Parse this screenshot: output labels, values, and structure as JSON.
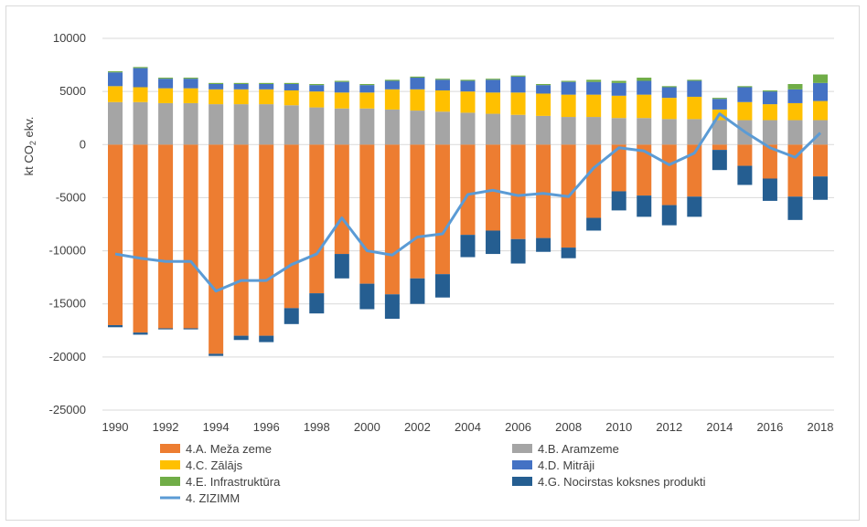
{
  "chart_data": {
    "type": "bar",
    "stacked": true,
    "title": "",
    "xlabel": "",
    "ylabel": "kt CO2 ekv.",
    "ylim": [
      -25000,
      10000
    ],
    "yticks": [
      "10000",
      "5000",
      "0",
      "-5000",
      "-10000",
      "-15000",
      "-20000",
      "-25000"
    ],
    "ytick_values": [
      10000,
      5000,
      0,
      -5000,
      -10000,
      -15000,
      -20000,
      -25000
    ],
    "xtick_labels": [
      "1990",
      "1992",
      "1994",
      "1996",
      "1998",
      "2000",
      "2002",
      "2004",
      "2006",
      "2008",
      "2010",
      "2012",
      "2014",
      "2016",
      "2018"
    ],
    "grid": true,
    "legend_position": "bottom",
    "categories": [
      1990,
      1991,
      1992,
      1993,
      1994,
      1995,
      1996,
      1997,
      1998,
      1999,
      2000,
      2001,
      2002,
      2003,
      2004,
      2005,
      2006,
      2007,
      2008,
      2009,
      2010,
      2011,
      2012,
      2013,
      2014,
      2015,
      2016,
      2017,
      2018
    ],
    "series": [
      {
        "name": "4.A. Meža zeme",
        "type": "bar",
        "color": "#ed7d31",
        "values": [
          -17000,
          -17700,
          -17300,
          -17300,
          -19700,
          -18000,
          -18000,
          -15400,
          -14000,
          -10300,
          -13100,
          -14100,
          -12600,
          -12200,
          -8500,
          -8100,
          -8900,
          -8800,
          -9700,
          -6900,
          -4400,
          -4800,
          -5700,
          -4900,
          -500,
          -2000,
          -3200,
          -4900,
          -3000
        ]
      },
      {
        "name": "4.B. Aramzeme",
        "type": "bar",
        "color": "#a5a5a5",
        "values": [
          4000,
          4000,
          3900,
          3900,
          3800,
          3800,
          3800,
          3700,
          3500,
          3400,
          3400,
          3300,
          3200,
          3100,
          3000,
          2900,
          2800,
          2700,
          2600,
          2600,
          2500,
          2500,
          2400,
          2400,
          2300,
          2300,
          2300,
          2300,
          2300
        ]
      },
      {
        "name": "4.C. Zālājs",
        "type": "bar",
        "color": "#ffc000",
        "values": [
          1500,
          1400,
          1400,
          1400,
          1400,
          1400,
          1400,
          1400,
          1500,
          1500,
          1500,
          1900,
          2000,
          2000,
          2000,
          2000,
          2100,
          2100,
          2100,
          2100,
          2100,
          2200,
          2000,
          2100,
          1000,
          1700,
          1500,
          1600,
          1800
        ]
      },
      {
        "name": "4.D. Mitrāji",
        "type": "bar",
        "color": "#4472c4",
        "values": [
          1300,
          1800,
          900,
          900,
          500,
          500,
          500,
          600,
          600,
          1000,
          700,
          800,
          1100,
          1000,
          1000,
          1200,
          1500,
          800,
          1200,
          1200,
          1200,
          1300,
          1000,
          1500,
          1000,
          1400,
          1200,
          1300,
          1700
        ]
      },
      {
        "name": "4.E. Infrastruktūra",
        "type": "bar",
        "color": "#70ad47",
        "values": [
          100,
          100,
          100,
          100,
          100,
          100,
          100,
          100,
          100,
          100,
          100,
          100,
          100,
          100,
          100,
          100,
          100,
          100,
          100,
          200,
          200,
          300,
          100,
          100,
          100,
          100,
          100,
          500,
          800
        ]
      },
      {
        "name": "4.G. Nocirstas koksnes produkti",
        "type": "bar",
        "color": "#255e91",
        "values": [
          -200,
          -200,
          -100,
          -100,
          -200,
          -400,
          -600,
          -1500,
          -1900,
          -2300,
          -2400,
          -2300,
          -2400,
          -2200,
          -2100,
          -2200,
          -2300,
          -1300,
          -1000,
          -1200,
          -1800,
          -2000,
          -1900,
          -1900,
          -1900,
          -1800,
          -2100,
          -2200,
          -2200
        ]
      },
      {
        "name": "4. ZIZIMM",
        "type": "line",
        "color": "#5b9bd5",
        "values": [
          -10300,
          -10700,
          -11000,
          -11000,
          -13800,
          -12800,
          -12800,
          -11300,
          -10300,
          -6900,
          -10000,
          -10400,
          -8700,
          -8400,
          -4700,
          -4300,
          -4800,
          -4600,
          -4900,
          -2200,
          -300,
          -600,
          -1900,
          -800,
          2900,
          1200,
          -300,
          -1200,
          1100
        ]
      }
    ],
    "legend_order": [
      0,
      1,
      2,
      3,
      4,
      5,
      6
    ]
  }
}
